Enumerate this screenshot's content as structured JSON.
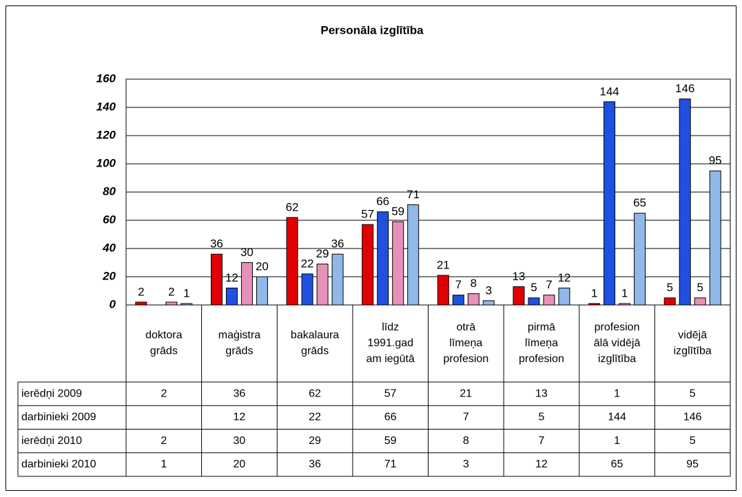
{
  "chart_data": {
    "type": "bar",
    "title": "Personāla izglītība",
    "categories": [
      "doktora\ngrāds",
      "maģistra\ngrāds",
      "bakalaura\ngrāds",
      "līdz\n1991.gad\nam iegūtā",
      "otrā\nlīmeņa\nprofesion",
      "pirmā\nlīmeņa\nprofesion",
      "profesion\nālā vidējā\nizglītība",
      "vidējā\nizglītība"
    ],
    "series": [
      {
        "name": "ierēdņi 2009",
        "color": "#e00000",
        "values": [
          2,
          36,
          62,
          57,
          21,
          13,
          1,
          5
        ]
      },
      {
        "name": "darbinieki 2009",
        "color": "#2050e0",
        "values": [
          null,
          12,
          22,
          66,
          7,
          5,
          144,
          146
        ]
      },
      {
        "name": "ierēdņi 2010",
        "color": "#e890b8",
        "values": [
          2,
          30,
          29,
          59,
          8,
          7,
          1,
          5
        ]
      },
      {
        "name": "darbinieki 2010",
        "color": "#90b8e8",
        "values": [
          1,
          20,
          36,
          71,
          3,
          12,
          65,
          95
        ]
      }
    ],
    "ylim": [
      0,
      160
    ],
    "yticks": [
      0,
      20,
      40,
      60,
      80,
      100,
      120,
      140,
      160
    ],
    "grid": true
  }
}
